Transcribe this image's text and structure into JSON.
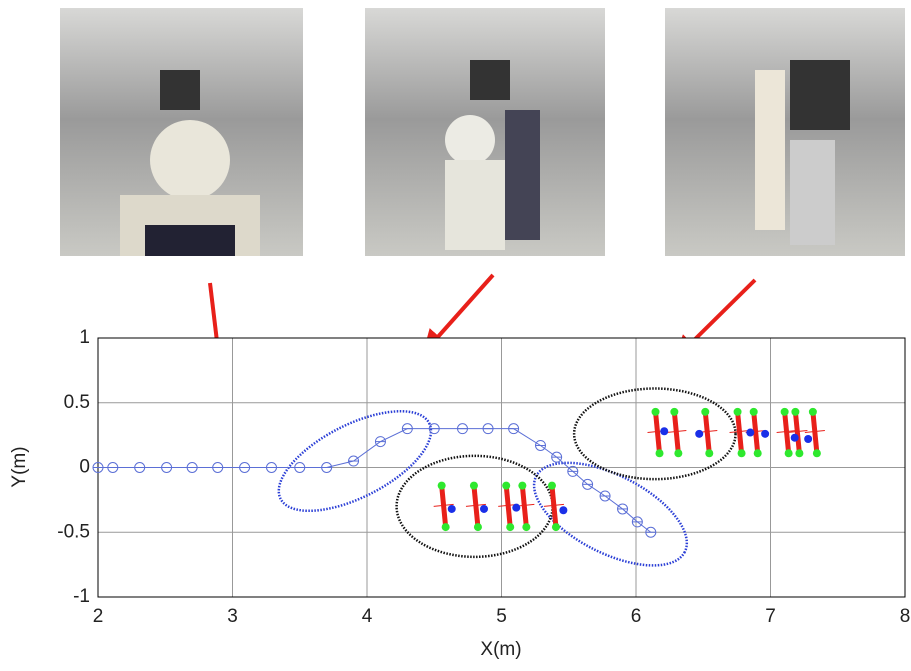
{
  "chart_data": {
    "type": "line",
    "x_label": "X(m)",
    "y_label": "Y(m)",
    "xlim": [
      2,
      8
    ],
    "xticks": [
      2,
      3,
      4,
      5,
      6,
      7,
      8
    ],
    "ylim": [
      -1,
      1
    ],
    "yticks": [
      -1,
      -0.5,
      0,
      0.5,
      1
    ],
    "grid": true,
    "series": [
      {
        "color": "#5b6fd6",
        "x": [
          2.0,
          2.11,
          2.31,
          2.51,
          2.7,
          2.89,
          3.09,
          3.29,
          3.5,
          3.7,
          3.9,
          4.1,
          4.3,
          4.5,
          4.71,
          4.9,
          5.09,
          5.29,
          5.41,
          5.53,
          5.64,
          5.77,
          5.9,
          6.01,
          6.11
        ],
        "values": [
          0,
          0,
          0,
          0,
          0,
          0,
          0,
          0,
          0,
          0,
          0.05,
          0.2,
          0.3,
          0.3,
          0.3,
          0.3,
          0.3,
          0.17,
          0.08,
          -0.03,
          -0.13,
          -0.22,
          -0.32,
          -0.42,
          -0.5
        ]
      }
    ],
    "ellipses": {
      "color": [
        "#2b3fd6",
        "#2b3fd6",
        "#111111",
        "#111111"
      ],
      "cx": [
        3.91,
        5.81,
        4.8,
        6.14
      ],
      "cy": [
        0.05,
        -0.36,
        -0.3,
        0.26
      ],
      "rx": [
        0.62,
        0.62,
        0.58,
        0.6
      ],
      "ry": [
        0.28,
        0.3,
        0.39,
        0.35
      ],
      "angle": [
        -27,
        27,
        0,
        0
      ]
    },
    "legs": {
      "color": "#e8201a",
      "end_color": "#2ee82e",
      "x": [
        4.57,
        4.81,
        5.05,
        5.17,
        5.39,
        6.16,
        6.3,
        6.53,
        6.77,
        6.89,
        7.12,
        7.2,
        7.33
      ],
      "y": [
        -0.3,
        -0.3,
        -0.3,
        -0.3,
        -0.3,
        0.27,
        0.27,
        0.27,
        0.27,
        0.27,
        0.27,
        0.27,
        0.27
      ]
    },
    "people": {
      "color": "#1a2fe8",
      "x": [
        4.63,
        4.87,
        5.11,
        5.46,
        6.21,
        6.47,
        6.85,
        6.96,
        7.18,
        7.28
      ],
      "y": [
        -0.32,
        -0.32,
        -0.31,
        -0.33,
        0.28,
        0.26,
        0.27,
        0.26,
        0.23,
        0.22
      ]
    }
  }
}
